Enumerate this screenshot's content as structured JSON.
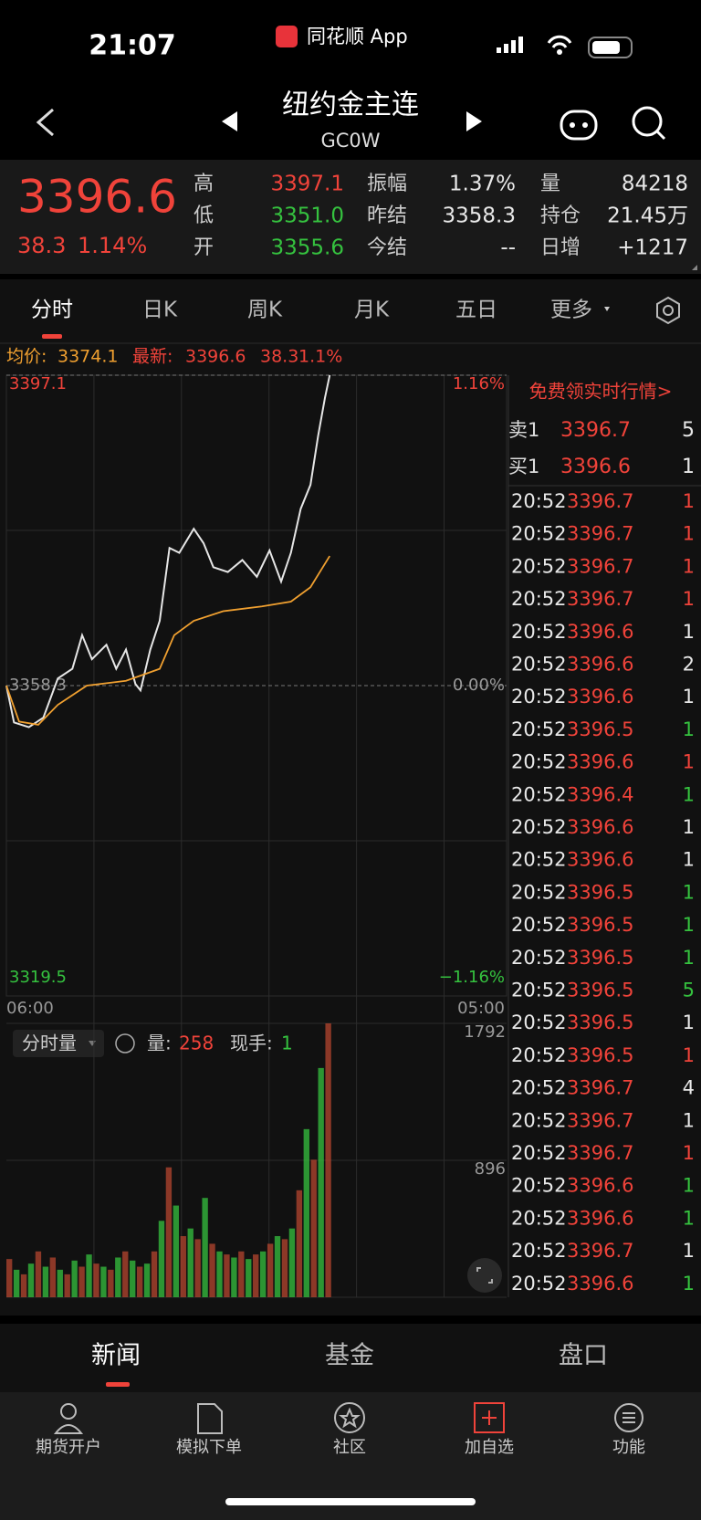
{
  "status": {
    "time": "21:07",
    "app": "同花顺 App"
  },
  "header": {
    "title": "纽约金主连",
    "code": "GC0W"
  },
  "quote": {
    "price": "3396.6",
    "change": "38.3",
    "pct": "1.14%",
    "fields": [
      {
        "label": "高",
        "value": "3397.1",
        "color": "#f0433a"
      },
      {
        "label": "振幅",
        "value": "1.37%",
        "color": "#e8e8e8"
      },
      {
        "label": "量",
        "value": "84218",
        "color": "#e8e8e8"
      },
      {
        "label": "低",
        "value": "3351.0",
        "color": "#35c23f"
      },
      {
        "label": "昨结",
        "value": "3358.3",
        "color": "#e8e8e8"
      },
      {
        "label": "持仓",
        "value": "21.45万",
        "color": "#e8e8e8"
      },
      {
        "label": "开",
        "value": "3355.6",
        "color": "#35c23f"
      },
      {
        "label": "今结",
        "value": "--",
        "color": "#e8e8e8"
      },
      {
        "label": "日增",
        "value": "+1217",
        "color": "#e8e8e8"
      }
    ]
  },
  "tabs": [
    "分时",
    "日K",
    "周K",
    "月K",
    "五日",
    "更多"
  ],
  "info": {
    "avg_label": "均价:",
    "avg": "3374.1",
    "last_label": "最新:",
    "last": "3396.6",
    "change": "38.3",
    "pct": "1.1%"
  },
  "chart_data": {
    "type": "line",
    "xlim": [
      0,
      1380
    ],
    "xticks": [
      {
        "value": 0,
        "label": "06:00"
      },
      {
        "value": 1380,
        "label": "05:00"
      }
    ],
    "ylim": [
      3319.5,
      3397.1
    ],
    "yticks": [
      3397.1,
      3358.3,
      3319.5
    ],
    "pct_ticks": [
      "1.16%",
      "0.00%",
      "−1.16%"
    ],
    "series": [
      {
        "name": "price",
        "color": "#e6e6e6",
        "x": [
          0,
          21,
          62,
          102,
          142,
          182,
          209,
          236,
          276,
          303,
          330,
          356,
          370,
          397,
          423,
          450,
          477,
          517,
          544,
          571,
          611,
          651,
          691,
          726,
          758,
          785,
          812,
          839,
          860,
          879,
          892
        ],
        "values": [
          3358.3,
          3353.7,
          3353.1,
          3354.3,
          3359.2,
          3360.4,
          3364.6,
          3361.6,
          3363.4,
          3360.4,
          3362.8,
          3358.5,
          3357.7,
          3362.8,
          3366.4,
          3375.5,
          3374.9,
          3377.9,
          3376.1,
          3373.1,
          3372.5,
          3374.0,
          3371.9,
          3375.2,
          3371.3,
          3374.9,
          3380.4,
          3383.4,
          3389.5,
          3394.3,
          3397.1
        ]
      },
      {
        "name": "avg",
        "color": "#f0a030",
        "x": [
          0,
          35,
          88,
          142,
          222,
          330,
          423,
          463,
          517,
          598,
          705,
          785,
          839,
          892
        ],
        "values": [
          3358.3,
          3353.8,
          3353.4,
          3355.9,
          3358.3,
          3358.9,
          3360.4,
          3364.6,
          3366.4,
          3367.6,
          3368.2,
          3368.8,
          3370.6,
          3374.5
        ]
      }
    ]
  },
  "volume_data": {
    "type": "bar",
    "legend": "分时量",
    "vol_label": "量:",
    "vol": "258",
    "hand_label": "现手:",
    "hand": "1",
    "ylim": [
      0,
      1792
    ],
    "yticks": [
      1792,
      896
    ],
    "color": "#b5452f",
    "x": [
      0,
      20,
      40,
      60,
      80,
      100,
      120,
      140,
      160,
      180,
      200,
      220,
      240,
      260,
      280,
      300,
      320,
      340,
      360,
      380,
      400,
      420,
      440,
      460,
      480,
      500,
      520,
      540,
      560,
      580,
      600,
      620,
      640,
      660,
      680,
      700,
      720,
      740,
      760,
      780,
      800,
      820,
      840,
      860,
      880
    ],
    "values": [
      250,
      180,
      150,
      220,
      300,
      200,
      260,
      180,
      150,
      240,
      200,
      280,
      220,
      200,
      180,
      260,
      300,
      240,
      200,
      220,
      300,
      500,
      850,
      600,
      400,
      450,
      380,
      650,
      350,
      300,
      280,
      260,
      300,
      250,
      280,
      300,
      350,
      400,
      380,
      450,
      700,
      1100,
      900,
      1500,
      1792
    ]
  },
  "side": {
    "promo": "免费领实时行情>",
    "book": [
      {
        "label": "卖1",
        "price": "3396.7",
        "qty": "5"
      },
      {
        "label": "买1",
        "price": "3396.6",
        "qty": "1"
      }
    ],
    "trades": [
      [
        "20:52",
        "3396.7",
        "1",
        "#f0433a"
      ],
      [
        "20:52",
        "3396.7",
        "1",
        "#f0433a"
      ],
      [
        "20:52",
        "3396.7",
        "1",
        "#f0433a"
      ],
      [
        "20:52",
        "3396.7",
        "1",
        "#f0433a"
      ],
      [
        "20:52",
        "3396.6",
        "1",
        "#e8e8e8"
      ],
      [
        "20:52",
        "3396.6",
        "2",
        "#e8e8e8"
      ],
      [
        "20:52",
        "3396.6",
        "1",
        "#e8e8e8"
      ],
      [
        "20:52",
        "3396.5",
        "1",
        "#35c23f"
      ],
      [
        "20:52",
        "3396.6",
        "1",
        "#f0433a"
      ],
      [
        "20:52",
        "3396.4",
        "1",
        "#35c23f"
      ],
      [
        "20:52",
        "3396.6",
        "1",
        "#e8e8e8"
      ],
      [
        "20:52",
        "3396.6",
        "1",
        "#e8e8e8"
      ],
      [
        "20:52",
        "3396.5",
        "1",
        "#35c23f"
      ],
      [
        "20:52",
        "3396.5",
        "1",
        "#35c23f"
      ],
      [
        "20:52",
        "3396.5",
        "1",
        "#35c23f"
      ],
      [
        "20:52",
        "3396.5",
        "5",
        "#35c23f"
      ],
      [
        "20:52",
        "3396.5",
        "1",
        "#e8e8e8"
      ],
      [
        "20:52",
        "3396.5",
        "1",
        "#f0433a"
      ],
      [
        "20:52",
        "3396.7",
        "4",
        "#e8e8e8"
      ],
      [
        "20:52",
        "3396.7",
        "1",
        "#e8e8e8"
      ],
      [
        "20:52",
        "3396.7",
        "1",
        "#f0433a"
      ],
      [
        "20:52",
        "3396.6",
        "1",
        "#35c23f"
      ],
      [
        "20:52",
        "3396.6",
        "1",
        "#35c23f"
      ],
      [
        "20:52",
        "3396.7",
        "1",
        "#e8e8e8"
      ],
      [
        "20:52",
        "3396.6",
        "1",
        "#35c23f"
      ]
    ]
  },
  "bottom_tabs": [
    "新闻",
    "基金",
    "盘口"
  ],
  "nav": [
    "期货开户",
    "模拟下单",
    "社区",
    "加自选",
    "功能"
  ]
}
